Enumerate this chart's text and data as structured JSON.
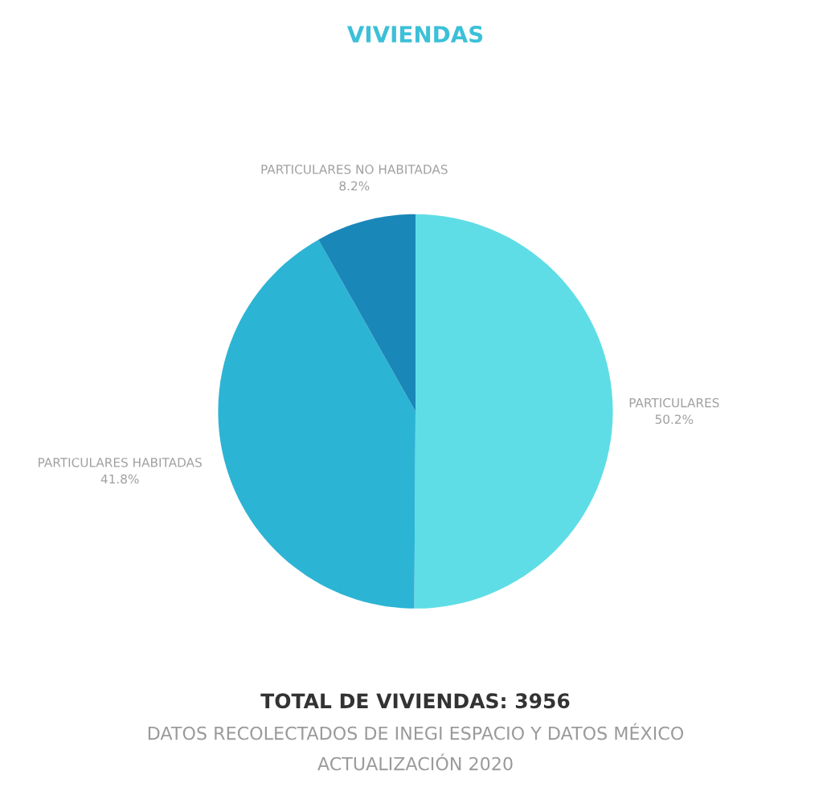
{
  "chart_data": {
    "type": "pie",
    "title": "VIVIENDAS",
    "categories": [
      "PARTICULARES",
      "PARTICULARES HABITADAS",
      "PARTICULARES NO HABITADAS"
    ],
    "values": [
      50.2,
      41.8,
      8.2
    ],
    "value_labels": [
      "50.2%",
      "41.8%",
      "8.2%"
    ],
    "colors": [
      "#5fdde6",
      "#2cb4d4",
      "#1a87b9"
    ],
    "annotations": [
      "TOTAL DE VIVIENDAS: 3956",
      "DATOS RECOLECTADOS DE INEGI ESPACIO Y DATOS MÉXICO",
      "ACTUALIZACIÓN 2020"
    ]
  }
}
